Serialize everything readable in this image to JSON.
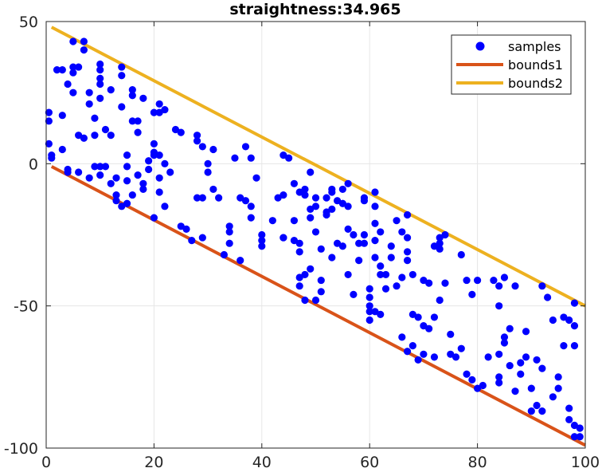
{
  "chart_data": {
    "type": "scatter",
    "title": "straightness:34.965",
    "xlabel": "",
    "ylabel": "",
    "xlim": [
      0,
      100
    ],
    "ylim": [
      -100,
      50
    ],
    "x_ticks": [
      0,
      20,
      40,
      60,
      80,
      100
    ],
    "y_ticks": [
      50,
      0,
      -50,
      -100
    ],
    "x_tick_labels": [
      "0",
      "20",
      "40",
      "60",
      "80",
      "100"
    ],
    "y_tick_labels": [
      "50",
      "0",
      "-50",
      "-100"
    ],
    "grid": true,
    "legend_position": "top-right",
    "colors": {
      "samples": "#0000ff",
      "bounds1": "#d95319",
      "bounds2": "#edb120",
      "grid": "#e6e6e6",
      "axis": "#262626"
    },
    "legend": [
      "samples",
      "bounds1",
      "bounds2"
    ],
    "series": [
      {
        "name": "samples",
        "kind": "markers",
        "points": [
          [
            0.5,
            18
          ],
          [
            0.5,
            15
          ],
          [
            0.5,
            7
          ],
          [
            1,
            2
          ],
          [
            1,
            3
          ],
          [
            2,
            33
          ],
          [
            3,
            33
          ],
          [
            3,
            17
          ],
          [
            3,
            5
          ],
          [
            4,
            28
          ],
          [
            4,
            -2
          ],
          [
            4,
            -3
          ],
          [
            5,
            43
          ],
          [
            5,
            34
          ],
          [
            5,
            25
          ],
          [
            5,
            32
          ],
          [
            6,
            34
          ],
          [
            6,
            -3
          ],
          [
            6,
            10
          ],
          [
            7,
            43
          ],
          [
            7,
            40
          ],
          [
            7,
            9
          ],
          [
            8,
            21
          ],
          [
            8,
            25
          ],
          [
            8,
            -5
          ],
          [
            9,
            16
          ],
          [
            9,
            10
          ],
          [
            9,
            -1
          ],
          [
            10,
            35
          ],
          [
            10,
            33
          ],
          [
            10,
            30
          ],
          [
            10,
            28
          ],
          [
            10,
            23
          ],
          [
            10,
            -1
          ],
          [
            10,
            -4
          ],
          [
            11,
            12
          ],
          [
            11,
            -1
          ],
          [
            12,
            26
          ],
          [
            12,
            10
          ],
          [
            12,
            -7
          ],
          [
            13,
            -5
          ],
          [
            13,
            -11
          ],
          [
            13,
            -13
          ],
          [
            14,
            -15
          ],
          [
            14,
            20
          ],
          [
            14,
            31
          ],
          [
            14,
            34
          ],
          [
            15,
            3
          ],
          [
            15,
            -1
          ],
          [
            15,
            -6
          ],
          [
            15,
            -14
          ],
          [
            16,
            24
          ],
          [
            16,
            26
          ],
          [
            16,
            15
          ],
          [
            16,
            -11
          ],
          [
            17,
            15
          ],
          [
            17,
            11
          ],
          [
            17,
            -4
          ],
          [
            18,
            23
          ],
          [
            18,
            -9
          ],
          [
            18,
            -7
          ],
          [
            19,
            -2
          ],
          [
            19,
            1
          ],
          [
            20,
            18
          ],
          [
            20,
            -19
          ],
          [
            20,
            7
          ],
          [
            20,
            4
          ],
          [
            20,
            3
          ],
          [
            21,
            21
          ],
          [
            21,
            18
          ],
          [
            21,
            3
          ],
          [
            21,
            -5
          ],
          [
            21,
            -10
          ],
          [
            22,
            19
          ],
          [
            22,
            -15
          ],
          [
            22,
            0
          ],
          [
            23,
            -3
          ],
          [
            24,
            12
          ],
          [
            25,
            11
          ],
          [
            25,
            -22
          ],
          [
            26,
            -23
          ],
          [
            27,
            -27
          ],
          [
            28,
            8
          ],
          [
            28,
            10
          ],
          [
            28,
            -12
          ],
          [
            29,
            -12
          ],
          [
            29,
            6
          ],
          [
            29,
            -26
          ],
          [
            30,
            0
          ],
          [
            30,
            -3
          ],
          [
            31,
            -9
          ],
          [
            31,
            5
          ],
          [
            32,
            -12
          ],
          [
            33,
            -32
          ],
          [
            34,
            -22
          ],
          [
            34,
            -24
          ],
          [
            34,
            -28
          ],
          [
            35,
            2
          ],
          [
            36,
            -12
          ],
          [
            36,
            -34
          ],
          [
            37,
            -13
          ],
          [
            37,
            6
          ],
          [
            38,
            -15
          ],
          [
            38,
            -19
          ],
          [
            38,
            2
          ],
          [
            39,
            -5
          ],
          [
            40,
            -25
          ],
          [
            40,
            -27
          ],
          [
            40,
            -29
          ],
          [
            42,
            -20
          ],
          [
            43,
            -12
          ],
          [
            44,
            3
          ],
          [
            44,
            -11
          ],
          [
            44,
            -26
          ],
          [
            44,
            -26
          ],
          [
            45,
            2
          ],
          [
            46,
            -7
          ],
          [
            46,
            -20
          ],
          [
            46,
            -27
          ],
          [
            47,
            -10
          ],
          [
            47,
            -28
          ],
          [
            47,
            -31
          ],
          [
            47,
            -40
          ],
          [
            47,
            -43
          ],
          [
            48,
            -9
          ],
          [
            48,
            -11
          ],
          [
            48,
            -39
          ],
          [
            48,
            -48
          ],
          [
            49,
            -3
          ],
          [
            49,
            -16
          ],
          [
            49,
            -19
          ],
          [
            49,
            -37
          ],
          [
            50,
            -48
          ],
          [
            50,
            -15
          ],
          [
            50,
            -24
          ],
          [
            50,
            -12
          ],
          [
            51,
            -41
          ],
          [
            51,
            -45
          ],
          [
            51,
            -30
          ],
          [
            52,
            -12
          ],
          [
            52,
            -18
          ],
          [
            52,
            -17
          ],
          [
            53,
            -9
          ],
          [
            53,
            -10
          ],
          [
            53,
            -33
          ],
          [
            53,
            -16
          ],
          [
            54,
            -13
          ],
          [
            54,
            -28
          ],
          [
            55,
            -9
          ],
          [
            55,
            -14
          ],
          [
            55,
            -29
          ],
          [
            56,
            -15
          ],
          [
            56,
            -23
          ],
          [
            56,
            -7
          ],
          [
            56,
            -39
          ],
          [
            57,
            -25
          ],
          [
            57,
            -46
          ],
          [
            58,
            -28
          ],
          [
            58,
            -34
          ],
          [
            59,
            -12
          ],
          [
            59,
            -13
          ],
          [
            59,
            -25
          ],
          [
            59,
            -28
          ],
          [
            60,
            -44
          ],
          [
            60,
            -47
          ],
          [
            60,
            -50
          ],
          [
            60,
            -52
          ],
          [
            60,
            -55
          ],
          [
            61,
            -10
          ],
          [
            61,
            -15
          ],
          [
            61,
            -21
          ],
          [
            61,
            -27
          ],
          [
            61,
            -33
          ],
          [
            61,
            -52
          ],
          [
            62,
            -24
          ],
          [
            62,
            -36
          ],
          [
            62,
            -39
          ],
          [
            62,
            -53
          ],
          [
            63,
            -44
          ],
          [
            63,
            -39
          ],
          [
            64,
            -29
          ],
          [
            64,
            -33
          ],
          [
            65,
            -20
          ],
          [
            65,
            -43
          ],
          [
            66,
            -24
          ],
          [
            66,
            -40
          ],
          [
            66,
            -61
          ],
          [
            67,
            -18
          ],
          [
            67,
            -26
          ],
          [
            67,
            -31
          ],
          [
            67,
            -34
          ],
          [
            67,
            -66
          ],
          [
            68,
            -39
          ],
          [
            68,
            -53
          ],
          [
            68,
            -64
          ],
          [
            69,
            -54
          ],
          [
            69,
            -69
          ],
          [
            70,
            -41
          ],
          [
            70,
            -57
          ],
          [
            70,
            -67
          ],
          [
            71,
            -42
          ],
          [
            71,
            -58
          ],
          [
            72,
            -54
          ],
          [
            72,
            -68
          ],
          [
            72,
            -29
          ],
          [
            73,
            -30
          ],
          [
            73,
            -26
          ],
          [
            73,
            -28
          ],
          [
            73,
            -48
          ],
          [
            74,
            -25
          ],
          [
            74,
            -42
          ],
          [
            75,
            -67
          ],
          [
            75,
            -60
          ],
          [
            76,
            -68
          ],
          [
            77,
            -32
          ],
          [
            77,
            -65
          ],
          [
            78,
            -41
          ],
          [
            78,
            -74
          ],
          [
            79,
            -46
          ],
          [
            79,
            -76
          ],
          [
            80,
            -41
          ],
          [
            80,
            -79
          ],
          [
            81,
            -78
          ],
          [
            82,
            -68
          ],
          [
            83,
            -41
          ],
          [
            84,
            -75
          ],
          [
            84,
            -50
          ],
          [
            84,
            -43
          ],
          [
            84,
            -67
          ],
          [
            84,
            -77
          ],
          [
            85,
            -40
          ],
          [
            85,
            -61
          ],
          [
            85,
            -63
          ],
          [
            86,
            -58
          ],
          [
            86,
            -71
          ],
          [
            87,
            -43
          ],
          [
            87,
            -80
          ],
          [
            88,
            -70
          ],
          [
            88,
            -74
          ],
          [
            89,
            -59
          ],
          [
            89,
            -68
          ],
          [
            90,
            -87
          ],
          [
            90,
            -79
          ],
          [
            91,
            -69
          ],
          [
            91,
            -85
          ],
          [
            92,
            -43
          ],
          [
            92,
            -72
          ],
          [
            92,
            -87
          ],
          [
            93,
            -47
          ],
          [
            94,
            -55
          ],
          [
            94,
            -82
          ],
          [
            95,
            -75
          ],
          [
            95,
            -79
          ],
          [
            96,
            -54
          ],
          [
            96,
            -64
          ],
          [
            97,
            -55
          ],
          [
            97,
            -86
          ],
          [
            97,
            -90
          ],
          [
            98,
            -49
          ],
          [
            98,
            -57
          ],
          [
            98,
            -64
          ],
          [
            98,
            -92
          ],
          [
            98,
            -96
          ],
          [
            99,
            -96
          ],
          [
            99,
            -93
          ]
        ]
      },
      {
        "name": "bounds1",
        "kind": "line",
        "x": [
          1,
          100
        ],
        "y": [
          -1,
          -99
        ]
      },
      {
        "name": "bounds2",
        "kind": "line",
        "x": [
          1,
          100
        ],
        "y": [
          48,
          -50
        ]
      }
    ]
  }
}
